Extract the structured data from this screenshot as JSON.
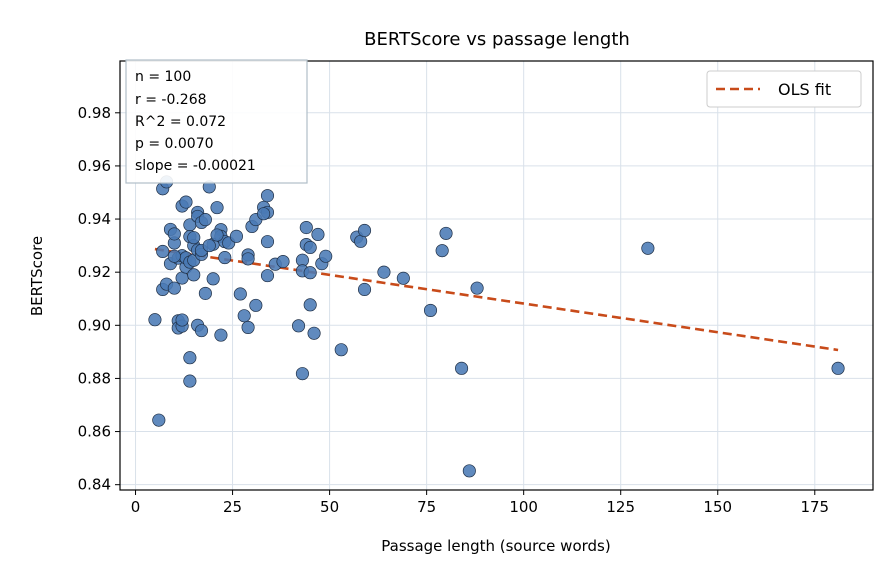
{
  "chart_data": {
    "type": "scatter",
    "title": "BERTScore vs passage length",
    "xlabel": "Passage length (source words)",
    "ylabel": "BERTScore",
    "xlim": [
      -4,
      190
    ],
    "ylim": [
      0.838,
      0.9995
    ],
    "xticks": [
      0,
      25,
      50,
      75,
      100,
      125,
      150,
      175
    ],
    "yticks": [
      0.84,
      0.86,
      0.88,
      0.9,
      0.92,
      0.94,
      0.96,
      0.98
    ],
    "xtick_labels": [
      "0",
      "25",
      "50",
      "75",
      "100",
      "125",
      "150",
      "175"
    ],
    "ytick_labels": [
      "0.84",
      "0.86",
      "0.88",
      "0.90",
      "0.92",
      "0.94",
      "0.96",
      "0.98"
    ],
    "grid": true,
    "legend": {
      "placement": "top-right",
      "entries": [
        "OLS fit"
      ]
    },
    "colors": {
      "points": "#4a7ab5",
      "points_edge": "#1f2f45",
      "fit": "#c84b1a",
      "grid": "#d9e1ea",
      "stats_border": "#b0bec8"
    },
    "stats_lines": [
      "n = 100",
      "r = -0.268",
      "R^2 = 0.072",
      "p = 0.0070",
      "slope = -0.00021"
    ],
    "fit_line": {
      "label": "OLS fit",
      "x": [
        5,
        181
      ],
      "y": [
        0.9287,
        0.8907
      ]
    },
    "points": [
      [
        6,
        0.8643
      ],
      [
        7,
        0.9514
      ],
      [
        7,
        0.9278
      ],
      [
        7,
        0.9135
      ],
      [
        8,
        0.9155
      ],
      [
        9,
        0.9361
      ],
      [
        9,
        0.9232
      ],
      [
        10,
        0.914
      ],
      [
        10,
        0.931
      ],
      [
        10,
        0.9344
      ],
      [
        11,
        0.9017
      ],
      [
        11,
        0.9253
      ],
      [
        11,
        0.899
      ],
      [
        12,
        0.9449
      ],
      [
        12,
        0.8997
      ],
      [
        12,
        0.9178
      ],
      [
        12,
        0.9262
      ],
      [
        13,
        0.9464
      ],
      [
        13,
        0.9219
      ],
      [
        13,
        0.9254
      ],
      [
        14,
        0.879
      ],
      [
        14,
        0.8878
      ],
      [
        14,
        0.9378
      ],
      [
        14,
        0.9334
      ],
      [
        14,
        0.9238
      ],
      [
        15,
        0.93
      ],
      [
        15,
        0.9245
      ],
      [
        15,
        0.919
      ],
      [
        16,
        0.9425
      ],
      [
        16,
        0.9
      ],
      [
        16,
        0.941
      ],
      [
        16,
        0.9283
      ],
      [
        17,
        0.898
      ],
      [
        17,
        0.9267
      ],
      [
        17,
        0.9387
      ],
      [
        18,
        0.912
      ],
      [
        19,
        0.9521
      ],
      [
        20,
        0.9305
      ],
      [
        20,
        0.9175
      ],
      [
        21,
        0.9443
      ],
      [
        22,
        0.8963
      ],
      [
        22,
        0.936
      ],
      [
        22,
        0.9335
      ],
      [
        23,
        0.9255
      ],
      [
        23,
        0.9315
      ],
      [
        24,
        0.931
      ],
      [
        27,
        0.9118
      ],
      [
        28,
        0.9036
      ],
      [
        29,
        0.8992
      ],
      [
        29,
        0.9265
      ],
      [
        29,
        0.925
      ],
      [
        30,
        0.9372
      ],
      [
        31,
        0.9398
      ],
      [
        31,
        0.9075
      ],
      [
        33,
        0.9444
      ],
      [
        34,
        0.9488
      ],
      [
        34,
        0.9425
      ],
      [
        34,
        0.9315
      ],
      [
        34,
        0.9187
      ],
      [
        36,
        0.923
      ],
      [
        42,
        0.8998
      ],
      [
        43,
        0.8818
      ],
      [
        43,
        0.9245
      ],
      [
        43,
        0.9205
      ],
      [
        44,
        0.9368
      ],
      [
        44,
        0.9304
      ],
      [
        45,
        0.9293
      ],
      [
        45,
        0.9198
      ],
      [
        45,
        0.9077
      ],
      [
        46,
        0.897
      ],
      [
        47,
        0.9342
      ],
      [
        48,
        0.9232
      ],
      [
        53,
        0.8908
      ],
      [
        57,
        0.9332
      ],
      [
        58,
        0.9316
      ],
      [
        59,
        0.9357
      ],
      [
        59,
        0.9135
      ],
      [
        64,
        0.92
      ],
      [
        69,
        0.9177
      ],
      [
        76,
        0.9056
      ],
      [
        79,
        0.9281
      ],
      [
        80,
        0.9346
      ],
      [
        84,
        0.8838
      ],
      [
        86,
        0.8452
      ],
      [
        88,
        0.914
      ],
      [
        132,
        0.929
      ],
      [
        181,
        0.8838
      ],
      [
        5,
        0.9021
      ],
      [
        8,
        0.954
      ],
      [
        12,
        0.902
      ],
      [
        17,
        0.9282
      ],
      [
        19,
        0.93
      ],
      [
        21,
        0.934
      ],
      [
        26,
        0.9335
      ],
      [
        33,
        0.942
      ],
      [
        38,
        0.924
      ],
      [
        49,
        0.926
      ],
      [
        15,
        0.933
      ],
      [
        10,
        0.926
      ],
      [
        18,
        0.9398
      ]
    ]
  }
}
